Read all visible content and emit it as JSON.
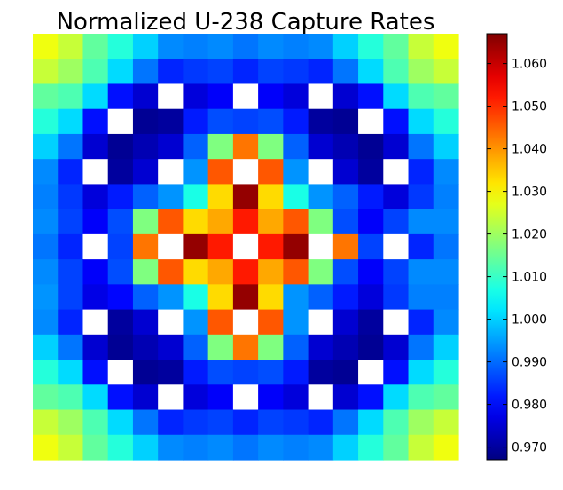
{
  "chart_data": {
    "type": "heatmap",
    "title": "Normalized U-238 Capture Rates",
    "xlabel": "",
    "ylabel": "",
    "grid": false,
    "colormap": "jet",
    "color_range": [
      0.967,
      1.067
    ],
    "colorbar_ticks": [
      0.97,
      0.98,
      0.99,
      1.0,
      1.01,
      1.02,
      1.03,
      1.04,
      1.05,
      1.06
    ],
    "colorbar_tick_labels": [
      "0.970",
      "0.980",
      "0.990",
      "1.000",
      "1.010",
      "1.020",
      "1.030",
      "1.040",
      "1.050",
      "1.060"
    ],
    "rows": 17,
    "cols": 17,
    "empty_cell_value": null,
    "values": [
      [
        1.028,
        1.024,
        1.014,
        1.008,
        1.0,
        0.993,
        0.992,
        0.993,
        0.991,
        0.993,
        0.992,
        0.993,
        1.0,
        1.008,
        1.014,
        1.024,
        1.028
      ],
      [
        1.024,
        1.02,
        1.012,
        1.001,
        0.991,
        0.983,
        0.985,
        0.986,
        0.983,
        0.986,
        0.985,
        0.983,
        0.991,
        1.001,
        1.012,
        1.02,
        1.024
      ],
      [
        1.014,
        1.012,
        1.001,
        0.981,
        0.975,
        null,
        0.976,
        0.979,
        null,
        0.979,
        0.976,
        null,
        0.975,
        0.981,
        1.001,
        1.012,
        1.014
      ],
      [
        1.008,
        1.001,
        0.981,
        null,
        0.969,
        0.97,
        0.982,
        0.987,
        0.986,
        0.987,
        0.982,
        0.97,
        0.969,
        null,
        0.981,
        1.001,
        1.008
      ],
      [
        1.0,
        0.991,
        0.975,
        0.969,
        0.972,
        0.975,
        0.989,
        1.017,
        1.043,
        1.017,
        0.989,
        0.975,
        0.972,
        0.969,
        0.975,
        0.991,
        1.0
      ],
      [
        0.993,
        0.983,
        null,
        0.97,
        0.975,
        null,
        0.994,
        1.046,
        null,
        1.046,
        0.994,
        null,
        0.975,
        0.97,
        null,
        0.983,
        0.993
      ],
      [
        0.992,
        0.985,
        0.976,
        0.982,
        0.989,
        0.994,
        1.007,
        1.033,
        1.065,
        1.033,
        1.007,
        0.994,
        0.989,
        0.982,
        0.976,
        0.985,
        0.992
      ],
      [
        0.993,
        0.986,
        0.979,
        0.987,
        1.017,
        1.046,
        1.033,
        1.038,
        1.052,
        1.038,
        1.046,
        1.017,
        0.987,
        0.979,
        0.986,
        0.993,
        0.993
      ],
      [
        0.991,
        0.983,
        null,
        0.986,
        1.043,
        null,
        1.065,
        1.052,
        null,
        1.052,
        1.065,
        null,
        1.043,
        0.986,
        null,
        0.983,
        0.991
      ],
      [
        0.993,
        0.986,
        0.979,
        0.987,
        1.017,
        1.046,
        1.033,
        1.038,
        1.052,
        1.038,
        1.046,
        1.017,
        0.987,
        0.979,
        0.986,
        0.993,
        0.993
      ],
      [
        0.994,
        0.986,
        0.977,
        0.98,
        0.989,
        0.994,
        1.007,
        1.033,
        1.065,
        1.033,
        0.994,
        0.989,
        0.982,
        0.976,
        0.985,
        0.992,
        0.992
      ],
      [
        0.993,
        0.983,
        null,
        0.97,
        0.975,
        null,
        0.994,
        1.046,
        null,
        1.046,
        0.994,
        null,
        0.975,
        0.97,
        null,
        0.983,
        0.993
      ],
      [
        1.0,
        0.991,
        0.975,
        0.969,
        0.972,
        0.975,
        0.989,
        1.017,
        1.043,
        1.017,
        0.989,
        0.975,
        0.972,
        0.969,
        0.975,
        0.991,
        1.0
      ],
      [
        1.008,
        1.001,
        0.981,
        null,
        0.969,
        0.97,
        0.982,
        0.987,
        0.986,
        0.987,
        0.982,
        0.97,
        0.969,
        null,
        0.981,
        1.001,
        1.008
      ],
      [
        1.014,
        1.012,
        1.001,
        0.981,
        0.975,
        null,
        0.976,
        0.979,
        null,
        0.979,
        0.976,
        null,
        0.975,
        0.981,
        1.001,
        1.012,
        1.014
      ],
      [
        1.024,
        1.02,
        1.012,
        1.001,
        0.991,
        0.983,
        0.985,
        0.986,
        0.983,
        0.986,
        0.985,
        0.983,
        0.991,
        1.001,
        1.012,
        1.02,
        1.024
      ],
      [
        1.028,
        1.024,
        1.014,
        1.008,
        1.0,
        0.993,
        0.992,
        0.993,
        0.991,
        0.993,
        0.992,
        0.993,
        1.0,
        1.008,
        1.014,
        1.024,
        1.028
      ]
    ]
  }
}
